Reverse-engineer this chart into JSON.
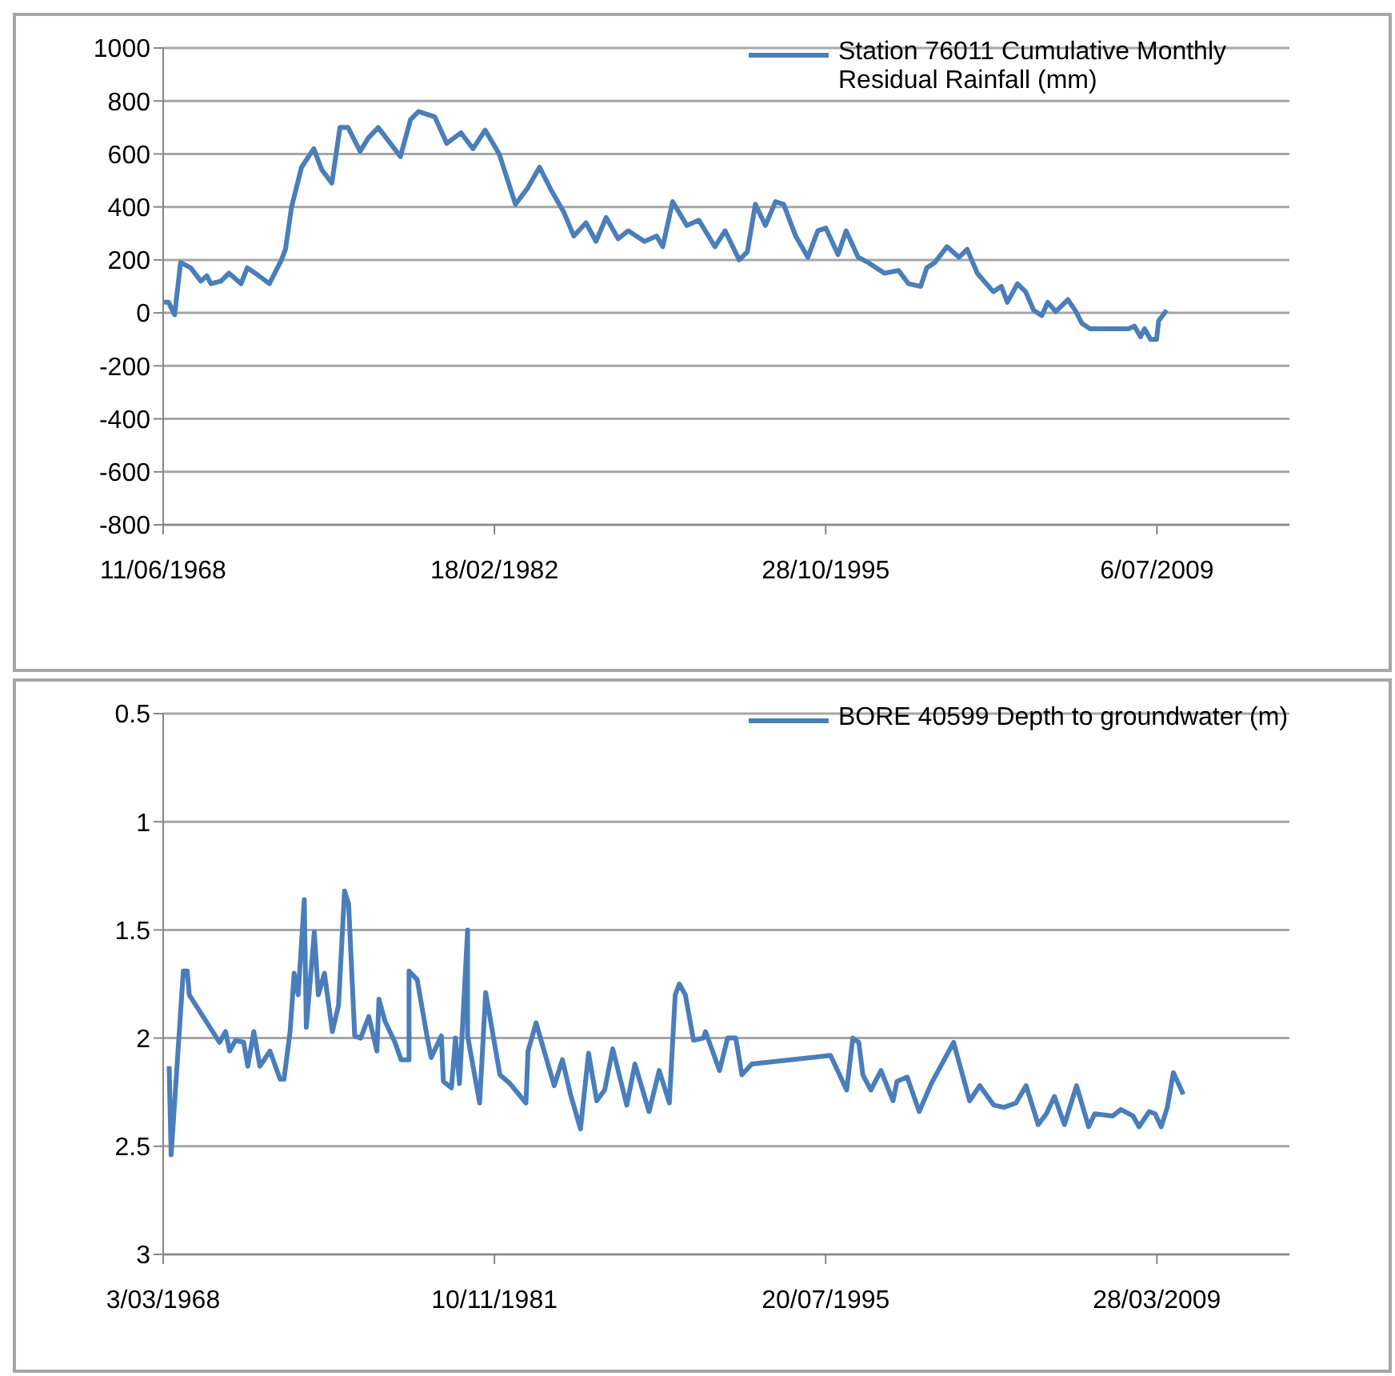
{
  "chart_data": [
    {
      "type": "line",
      "x": [
        "1968-06-15",
        "1968-09",
        "1968-12",
        "1969-03",
        "1969-08",
        "1970-01",
        "1970-04",
        "1970-06",
        "1970-11",
        "1971-03",
        "1971-09",
        "1971-12",
        "1972-04",
        "1972-11",
        "1973-05",
        "1973-07",
        "1973-10",
        "1974-03",
        "1974-09",
        "1975-01",
        "1975-06",
        "1975-10",
        "1976-02",
        "1976-08",
        "1976-12",
        "1977-05",
        "1977-10",
        "1978-04",
        "1978-09",
        "1979-01",
        "1979-09",
        "1980-03",
        "1980-10",
        "1981-04",
        "1981-10",
        "1982-05",
        "1983-01",
        "1983-07",
        "1984-01",
        "1984-07",
        "1985-01",
        "1985-06",
        "1985-12",
        "1986-05",
        "1986-10",
        "1987-04",
        "1987-09",
        "1988-05",
        "1988-11",
        "1989-02",
        "1989-07",
        "1990-02",
        "1990-08",
        "1991-04",
        "1991-09",
        "1992-04",
        "1992-08",
        "1992-12",
        "1993-05",
        "1993-10",
        "1994-02",
        "1994-08",
        "1995-02",
        "1995-07",
        "1995-11",
        "1996-05",
        "1996-09",
        "1997-03",
        "1997-08",
        "1998-04",
        "1998-11",
        "1999-04",
        "1999-10",
        "2000-01",
        "2000-05",
        "2000-11",
        "2001-05",
        "2001-09",
        "2002-02",
        "2002-10",
        "2003-02",
        "2003-05",
        "2003-10",
        "2004-02",
        "2004-06",
        "2004-10",
        "2005-01",
        "2005-05",
        "2005-11",
        "2006-03",
        "2006-06",
        "2006-10",
        "2008-05",
        "2008-08",
        "2008-11",
        "2009-01",
        "2009-04",
        "2009-07",
        "2009-08",
        "2009-12"
      ],
      "series": [
        {
          "name": "Station 76011 Cumulative Monthly Residual Rainfall (mm)",
          "color": "#4a7ebb",
          "values": [
            40,
            40,
            -7,
            190,
            170,
            120,
            140,
            110,
            120,
            150,
            110,
            170,
            150,
            110,
            200,
            240,
            400,
            550,
            620,
            540,
            490,
            700,
            700,
            610,
            660,
            700,
            650,
            590,
            730,
            760,
            740,
            640,
            680,
            620,
            690,
            600,
            410,
            470,
            550,
            460,
            380,
            290,
            340,
            270,
            360,
            280,
            310,
            270,
            290,
            250,
            420,
            330,
            350,
            250,
            310,
            200,
            230,
            410,
            330,
            420,
            410,
            290,
            210,
            310,
            320,
            220,
            310,
            210,
            190,
            150,
            160,
            110,
            100,
            170,
            190,
            250,
            210,
            240,
            150,
            80,
            100,
            40,
            110,
            80,
            10,
            -10,
            40,
            5,
            50,
            5,
            -40,
            -60,
            -60,
            -50,
            -90,
            -60,
            -100,
            -100,
            -30,
            10
          ]
        }
      ],
      "xlim": [
        "1968-06-11",
        "2014-12-27"
      ],
      "xticks": [
        {
          "value": "1968-06-11",
          "label": "11/06/1968"
        },
        {
          "value": "1982-02-18",
          "label": "18/02/1982"
        },
        {
          "value": "1995-10-28",
          "label": "28/10/1995"
        },
        {
          "value": "2009-07-06",
          "label": "6/07/2009"
        }
      ],
      "ylim": [
        -800,
        1000
      ],
      "yticks": [
        -800,
        -600,
        -400,
        -200,
        0,
        200,
        400,
        600,
        800,
        1000
      ],
      "grid": "y",
      "legend": "top right"
    },
    {
      "type": "line",
      "x": [
        "1968-06",
        "1968-07",
        "1969-01",
        "1969-03",
        "1969-04",
        "1970-07",
        "1970-10",
        "1970-12",
        "1971-03",
        "1971-07",
        "1971-09",
        "1971-12",
        "1972-03",
        "1972-08",
        "1973-01",
        "1973-03",
        "1973-06",
        "1973-08",
        "1973-10",
        "1974-01",
        "1974-02",
        "1974-06",
        "1974-08",
        "1974-11",
        "1975-03",
        "1975-06",
        "1975-09",
        "1975-11",
        "1976-02",
        "1976-05",
        "1976-09",
        "1977-01",
        "1977-02",
        "1977-05",
        "1977-10",
        "1978-01",
        "1978-05",
        "1978-05",
        "1978-09",
        "1979-02",
        "1979-04",
        "1979-09",
        "1979-10",
        "1980-02",
        "1980-04",
        "1980-06",
        "1980-10",
        "1980-10",
        "1981-04",
        "1981-07",
        "1982-02",
        "1982-07",
        "1983-03",
        "1983-04",
        "1983-08",
        "1983-12",
        "1984-05",
        "1984-09",
        "1985-01",
        "1985-06",
        "1985-10",
        "1986-02",
        "1986-06",
        "1986-10",
        "1987-05",
        "1987-09",
        "1988-04",
        "1988-09",
        "1989-02",
        "1989-05",
        "1989-07",
        "1989-10",
        "1990-02",
        "1990-07",
        "1990-08",
        "1991-03",
        "1991-07",
        "1991-11",
        "1992-02",
        "1992-07",
        "1995-10",
        "1996-06",
        "1996-09",
        "1996-12",
        "1997-02",
        "1997-06",
        "1997-11",
        "1998-05",
        "1998-07",
        "1998-12",
        "1999-06",
        "1999-12",
        "2000-11",
        "2001-07",
        "2001-12",
        "2002-07",
        "2002-12",
        "2003-06",
        "2003-11",
        "2004-05",
        "2004-09",
        "2005-01",
        "2005-06",
        "2005-12",
        "2006-06",
        "2006-09",
        "2007-06",
        "2007-10",
        "2008-04",
        "2008-07",
        "2008-12",
        "2009-03",
        "2009-06",
        "2009-09",
        "2009-12",
        "2010-05"
      ],
      "series": [
        {
          "name": "BORE 40599 Depth to groundwater (m)",
          "color": "#4a7ebb",
          "values": [
            2.13,
            2.54,
            1.69,
            1.69,
            1.8,
            2.02,
            1.97,
            2.06,
            2.01,
            2.02,
            2.13,
            1.97,
            2.13,
            2.06,
            2.19,
            2.19,
            1.97,
            1.7,
            1.8,
            1.36,
            1.95,
            1.51,
            1.8,
            1.7,
            1.97,
            1.85,
            1.32,
            1.38,
            1.99,
            2.0,
            1.9,
            2.06,
            1.82,
            1.92,
            2.02,
            2.1,
            2.1,
            1.69,
            1.73,
            2.0,
            2.09,
            1.99,
            2.2,
            2.23,
            2.0,
            2.21,
            1.5,
            1.99,
            2.3,
            1.79,
            2.17,
            2.21,
            2.3,
            2.06,
            1.93,
            2.06,
            2.22,
            2.1,
            2.26,
            2.42,
            2.07,
            2.29,
            2.24,
            2.05,
            2.31,
            2.12,
            2.34,
            2.15,
            2.3,
            1.8,
            1.75,
            1.8,
            2.01,
            2.0,
            1.97,
            2.15,
            2.0,
            2.0,
            2.17,
            2.12,
            2.08,
            2.24,
            2.0,
            2.02,
            2.17,
            2.24,
            2.15,
            2.29,
            2.2,
            2.18,
            2.34,
            2.21,
            2.02,
            2.29,
            2.22,
            2.31,
            2.32,
            2.3,
            2.22,
            2.4,
            2.35,
            2.27,
            2.4,
            2.22,
            2.41,
            2.35,
            2.36,
            2.33,
            2.36,
            2.41,
            2.34,
            2.35,
            2.41,
            2.32,
            2.16,
            2.26
          ]
        }
      ],
      "xlim": [
        "1968-03-03",
        "2014-09-18"
      ],
      "xticks": [
        {
          "value": "1968-03-03",
          "label": "3/03/1968"
        },
        {
          "value": "1981-11-10",
          "label": "10/11/1981"
        },
        {
          "value": "1995-07-20",
          "label": "20/07/1995"
        },
        {
          "value": "2009-03-28",
          "label": "28/03/2009"
        }
      ],
      "ylim": [
        3,
        0.5
      ],
      "yticks": [
        0.5,
        1,
        1.5,
        2,
        2.5,
        3
      ],
      "grid": "y",
      "legend": "top right"
    }
  ]
}
